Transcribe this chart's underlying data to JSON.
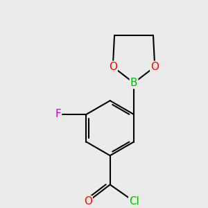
{
  "bg_color": "#ebebeb",
  "bond_color": "#000000",
  "bond_width": 1.5,
  "atom_colors": {
    "O": "#ff0000",
    "B": "#00bb00",
    "F": "#cc00cc",
    "Cl": "#00bb00",
    "double_O": "#ff0000"
  },
  "font_size": 11
}
